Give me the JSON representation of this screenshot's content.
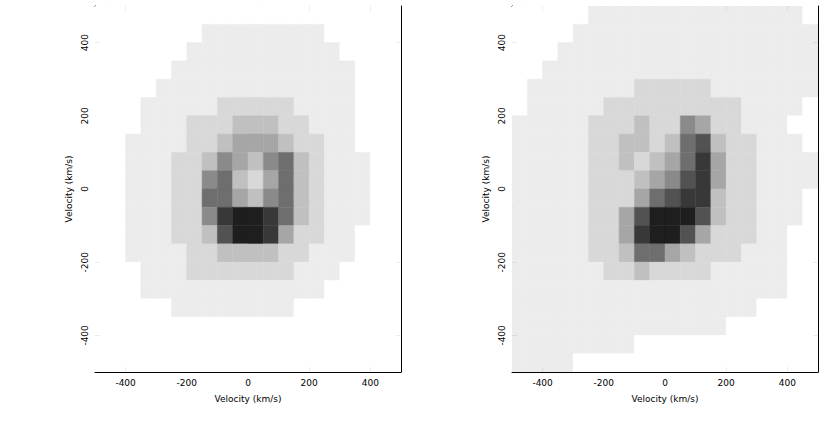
{
  "chart_data": [
    {
      "type": "heatmap",
      "xlabel": "Velocity (km/s)",
      "ylabel": "Velocity (km/s)",
      "xlim": [
        -500,
        500
      ],
      "ylim": [
        -500,
        500
      ],
      "xticks": [
        -400,
        -200,
        0,
        200,
        400
      ],
      "yticks": [
        -400,
        -200,
        0,
        200,
        400
      ],
      "zlim": [
        0,
        9
      ],
      "x": [
        -475,
        -425,
        -375,
        -325,
        -275,
        -225,
        -175,
        -125,
        -75,
        -25,
        25,
        75,
        125,
        175,
        225,
        275,
        325,
        375,
        425,
        475
      ],
      "y": [
        475,
        425,
        375,
        325,
        275,
        225,
        175,
        125,
        75,
        25,
        -25,
        -75,
        -125,
        -175,
        -225,
        -275,
        -325,
        -375,
        -425,
        -475
      ],
      "z": [
        [
          0,
          0,
          0,
          0,
          0,
          0,
          0,
          0,
          0,
          0,
          0,
          0,
          0,
          0,
          0,
          0,
          0,
          0,
          0,
          0
        ],
        [
          0,
          0,
          0,
          0,
          0,
          0,
          0,
          1,
          1,
          1,
          1,
          1,
          1,
          1,
          1,
          0,
          0,
          0,
          0,
          0
        ],
        [
          0,
          0,
          0,
          0,
          0,
          0,
          1,
          1,
          1,
          1,
          1,
          1,
          1,
          1,
          1,
          1,
          0,
          0,
          0,
          0
        ],
        [
          0,
          0,
          0,
          0,
          0,
          1,
          1,
          1,
          1,
          1,
          1,
          1,
          1,
          1,
          1,
          1,
          1,
          0,
          0,
          0
        ],
        [
          0,
          0,
          0,
          0,
          1,
          1,
          1,
          1,
          1,
          1,
          1,
          1,
          1,
          1,
          1,
          1,
          1,
          0,
          0,
          0
        ],
        [
          0,
          0,
          0,
          1,
          1,
          1,
          1,
          1,
          2,
          2,
          2,
          2,
          2,
          1,
          1,
          1,
          1,
          0,
          0,
          0
        ],
        [
          0,
          0,
          0,
          1,
          1,
          1,
          2,
          2,
          2,
          3,
          3,
          3,
          2,
          2,
          1,
          1,
          1,
          0,
          0,
          0
        ],
        [
          0,
          0,
          1,
          1,
          1,
          1,
          2,
          2,
          3,
          4,
          4,
          4,
          3,
          2,
          2,
          1,
          1,
          0,
          0,
          0
        ],
        [
          0,
          0,
          1,
          1,
          1,
          2,
          2,
          3,
          5,
          4,
          3,
          5,
          6,
          3,
          2,
          1,
          1,
          1,
          0,
          0
        ],
        [
          0,
          0,
          1,
          1,
          1,
          2,
          2,
          5,
          6,
          3,
          2,
          4,
          6,
          3,
          2,
          1,
          1,
          1,
          0,
          0
        ],
        [
          0,
          0,
          1,
          1,
          1,
          2,
          2,
          6,
          6,
          4,
          3,
          5,
          6,
          3,
          2,
          1,
          1,
          1,
          0,
          0
        ],
        [
          0,
          0,
          1,
          1,
          1,
          2,
          2,
          5,
          8,
          9,
          9,
          8,
          6,
          3,
          2,
          1,
          1,
          1,
          0,
          0
        ],
        [
          0,
          0,
          1,
          1,
          1,
          2,
          2,
          3,
          7,
          9,
          9,
          8,
          4,
          2,
          2,
          1,
          1,
          0,
          0,
          0
        ],
        [
          0,
          0,
          1,
          1,
          1,
          1,
          2,
          2,
          3,
          3,
          3,
          3,
          2,
          2,
          1,
          1,
          1,
          0,
          0,
          0
        ],
        [
          0,
          0,
          0,
          1,
          1,
          1,
          2,
          2,
          2,
          2,
          2,
          2,
          2,
          1,
          1,
          1,
          0,
          0,
          0,
          0
        ],
        [
          0,
          0,
          0,
          1,
          1,
          1,
          1,
          1,
          1,
          1,
          1,
          1,
          1,
          1,
          1,
          0,
          0,
          0,
          0,
          0
        ],
        [
          0,
          0,
          0,
          0,
          0,
          1,
          1,
          1,
          1,
          1,
          1,
          1,
          1,
          0,
          0,
          0,
          0,
          0,
          0,
          0
        ],
        [
          0,
          0,
          0,
          0,
          0,
          0,
          0,
          0,
          0,
          0,
          0,
          0,
          0,
          0,
          0,
          0,
          0,
          0,
          0,
          0
        ],
        [
          0,
          0,
          0,
          0,
          0,
          0,
          0,
          0,
          0,
          0,
          0,
          0,
          0,
          0,
          0,
          0,
          0,
          0,
          0,
          0
        ],
        [
          0,
          0,
          0,
          0,
          0,
          0,
          0,
          0,
          0,
          0,
          0,
          0,
          0,
          0,
          0,
          0,
          0,
          0,
          0,
          0
        ]
      ]
    },
    {
      "type": "heatmap",
      "xlabel": "Velocity (km/s)",
      "ylabel": "Velocity (km/s)",
      "xlim": [
        -500,
        500
      ],
      "ylim": [
        -500,
        500
      ],
      "xticks": [
        -400,
        -200,
        0,
        200,
        400
      ],
      "yticks": [
        -400,
        -200,
        0,
        200,
        400
      ],
      "zlim": [
        0,
        9
      ],
      "x": [
        -475,
        -425,
        -375,
        -325,
        -275,
        -225,
        -175,
        -125,
        -75,
        -25,
        25,
        75,
        125,
        175,
        225,
        275,
        325,
        375,
        425,
        475
      ],
      "y": [
        475,
        425,
        375,
        325,
        275,
        225,
        175,
        125,
        75,
        25,
        -25,
        -75,
        -125,
        -175,
        -225,
        -275,
        -325,
        -375,
        -425,
        -475
      ],
      "z": [
        [
          0,
          0,
          0,
          0,
          0,
          1,
          1,
          1,
          1,
          1,
          1,
          1,
          1,
          1,
          1,
          1,
          1,
          1,
          1,
          0
        ],
        [
          0,
          0,
          0,
          0,
          1,
          1,
          1,
          1,
          1,
          1,
          1,
          1,
          1,
          1,
          1,
          1,
          1,
          1,
          1,
          1
        ],
        [
          0,
          0,
          0,
          1,
          1,
          1,
          1,
          1,
          1,
          1,
          1,
          1,
          1,
          1,
          1,
          1,
          1,
          1,
          1,
          1
        ],
        [
          0,
          0,
          1,
          1,
          1,
          1,
          1,
          1,
          1,
          1,
          1,
          1,
          1,
          1,
          1,
          1,
          1,
          1,
          1,
          1
        ],
        [
          0,
          1,
          1,
          1,
          1,
          1,
          1,
          1,
          2,
          2,
          2,
          2,
          2,
          1,
          1,
          1,
          1,
          1,
          1,
          1
        ],
        [
          0,
          1,
          1,
          1,
          1,
          1,
          2,
          2,
          2,
          2,
          2,
          2,
          2,
          2,
          2,
          1,
          1,
          1,
          1,
          0
        ],
        [
          1,
          1,
          1,
          1,
          1,
          2,
          2,
          2,
          3,
          2,
          2,
          5,
          4,
          2,
          2,
          1,
          1,
          1,
          0,
          0
        ],
        [
          1,
          1,
          1,
          1,
          1,
          2,
          2,
          3,
          3,
          2,
          3,
          6,
          7,
          3,
          2,
          2,
          1,
          1,
          1,
          0
        ],
        [
          1,
          1,
          1,
          1,
          1,
          2,
          2,
          3,
          2,
          3,
          4,
          6,
          8,
          4,
          2,
          2,
          1,
          1,
          1,
          1
        ],
        [
          1,
          1,
          1,
          1,
          1,
          2,
          2,
          2,
          3,
          4,
          5,
          7,
          8,
          4,
          2,
          2,
          1,
          1,
          1,
          1
        ],
        [
          1,
          1,
          1,
          1,
          1,
          2,
          2,
          2,
          4,
          6,
          7,
          8,
          8,
          3,
          2,
          2,
          1,
          1,
          1,
          0
        ],
        [
          1,
          1,
          1,
          1,
          1,
          2,
          2,
          4,
          7,
          9,
          9,
          9,
          7,
          3,
          2,
          2,
          1,
          1,
          1,
          0
        ],
        [
          1,
          1,
          1,
          1,
          1,
          2,
          2,
          4,
          8,
          9,
          9,
          7,
          4,
          2,
          2,
          2,
          1,
          1,
          0,
          0
        ],
        [
          1,
          1,
          1,
          1,
          1,
          2,
          2,
          3,
          6,
          6,
          4,
          3,
          2,
          2,
          2,
          1,
          1,
          1,
          0,
          0
        ],
        [
          1,
          1,
          1,
          1,
          1,
          1,
          2,
          2,
          3,
          2,
          2,
          2,
          2,
          1,
          1,
          1,
          1,
          1,
          0,
          0
        ],
        [
          1,
          1,
          1,
          1,
          1,
          1,
          1,
          1,
          1,
          1,
          1,
          1,
          1,
          1,
          1,
          1,
          1,
          1,
          0,
          0
        ],
        [
          1,
          1,
          1,
          1,
          1,
          1,
          1,
          1,
          1,
          1,
          1,
          1,
          1,
          1,
          1,
          1,
          0,
          0,
          0,
          0
        ],
        [
          1,
          1,
          1,
          1,
          1,
          1,
          1,
          1,
          1,
          1,
          1,
          1,
          1,
          1,
          0,
          0,
          0,
          0,
          0,
          0
        ],
        [
          1,
          1,
          1,
          1,
          1,
          1,
          1,
          1,
          0,
          0,
          0,
          0,
          0,
          0,
          0,
          0,
          0,
          0,
          0,
          0
        ],
        [
          1,
          1,
          1,
          1,
          0,
          0,
          0,
          0,
          0,
          0,
          0,
          0,
          0,
          0,
          0,
          0,
          0,
          0,
          0,
          0
        ]
      ]
    }
  ]
}
